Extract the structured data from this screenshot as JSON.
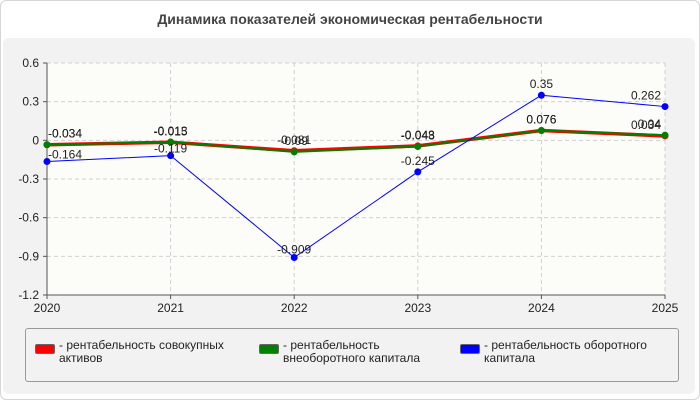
{
  "chart_data": {
    "type": "line",
    "title": "Динамика показателей экономическая рентабельности",
    "xlabel": "",
    "ylabel": "",
    "categories": [
      "2020",
      "2021",
      "2022",
      "2023",
      "2024",
      "2025"
    ],
    "ylim": [
      -1.2,
      0.6
    ],
    "yticks": [
      "0.6",
      "0.3",
      "0",
      "-0.3",
      "-0.6",
      "-0.9",
      "-1.2"
    ],
    "grid": true,
    "legend_position": "bottom",
    "series": [
      {
        "name": "рентабельность совокупных активов",
        "color": "#ff0000",
        "values": [
          -0.034,
          -0.015,
          -0.081,
          -0.043,
          0.076,
          0.034
        ],
        "labels": [
          "-0.034",
          "-0.015",
          "-0.081",
          "-0.043",
          "0.076",
          "0.034"
        ]
      },
      {
        "name": "рентабельность внеоборотного капитала",
        "color": "#008000",
        "values": [
          -0.034,
          -0.013,
          -0.09,
          -0.048,
          0.076,
          0.04
        ],
        "labels": [
          "-0.034",
          "-0.013",
          "-0.09",
          "-0.048",
          "0.076",
          "0.04"
        ]
      },
      {
        "name": "рентабельность оборотного капитала",
        "color": "#0000ff",
        "values": [
          -0.164,
          -0.119,
          -0.909,
          -0.245,
          0.35,
          0.262
        ],
        "labels": [
          "-0.164",
          "-0.119",
          "-0.909",
          "-0.245",
          "0.35",
          "0.262"
        ]
      }
    ]
  }
}
